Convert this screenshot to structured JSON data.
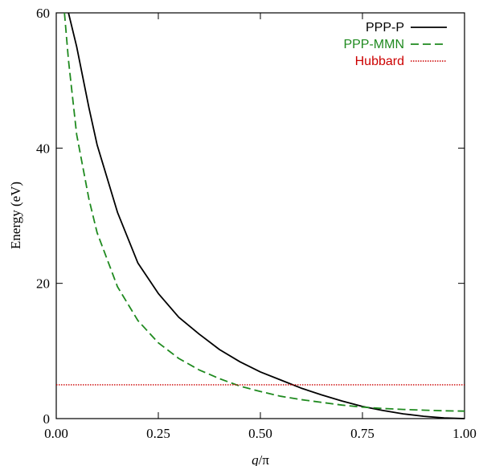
{
  "chart_data": {
    "type": "line",
    "xlabel": "q/π",
    "xlabel_italic": "q",
    "xlabel_rest": "/π",
    "ylabel": "Energy (eV)",
    "xlim": [
      0,
      1
    ],
    "ylim": [
      0,
      60
    ],
    "x_ticks": [
      "0.00",
      "0.25",
      "0.50",
      "0.75",
      "1.00"
    ],
    "y_ticks": [
      "0",
      "20",
      "40",
      "60"
    ],
    "grid": false,
    "legend": "top-right",
    "series": [
      {
        "name": "PPP-P",
        "color": "#000000",
        "dash": "solid",
        "x": [
          0.03,
          0.05,
          0.08,
          0.1,
          0.15,
          0.2,
          0.25,
          0.3,
          0.35,
          0.4,
          0.45,
          0.5,
          0.55,
          0.6,
          0.65,
          0.7,
          0.75,
          0.8,
          0.85,
          0.9,
          0.95,
          1.0
        ],
        "y": [
          60.0,
          55.0,
          46.0,
          40.5,
          30.5,
          23.0,
          18.5,
          15.0,
          12.5,
          10.2,
          8.4,
          6.9,
          5.7,
          4.5,
          3.5,
          2.6,
          1.8,
          1.2,
          0.7,
          0.35,
          0.1,
          0.0
        ]
      },
      {
        "name": "PPP-MMN",
        "color": "#1f8a1f",
        "dash": "dashed",
        "x": [
          0.02,
          0.03,
          0.05,
          0.08,
          0.1,
          0.15,
          0.2,
          0.25,
          0.3,
          0.35,
          0.4,
          0.45,
          0.5,
          0.55,
          0.6,
          0.65,
          0.7,
          0.75,
          0.8,
          0.85,
          0.9,
          0.95,
          1.0
        ],
        "y": [
          60.0,
          53.0,
          42.0,
          32.5,
          27.5,
          19.5,
          14.5,
          11.2,
          8.9,
          7.2,
          5.9,
          4.8,
          4.0,
          3.3,
          2.8,
          2.4,
          2.0,
          1.7,
          1.5,
          1.35,
          1.25,
          1.15,
          1.1
        ]
      },
      {
        "name": "Hubbard",
        "color": "#cc0000",
        "dash": "dotted",
        "x": [
          0.0,
          1.0
        ],
        "y": [
          5.0,
          5.0
        ]
      }
    ]
  }
}
